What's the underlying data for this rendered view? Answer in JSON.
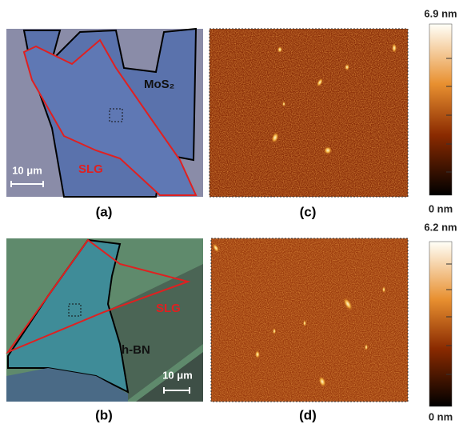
{
  "panel_a": {
    "label": "(a)",
    "flake": "MoS₂",
    "layer": "SLG",
    "scale_bar": "10 μm"
  },
  "panel_b": {
    "label": "(b)",
    "flake": "h-BN",
    "layer": "SLG",
    "scale_bar": "10 μm"
  },
  "panel_c": {
    "label": "(c)",
    "colorbar_max": "6.9 nm",
    "colorbar_min": "0 nm"
  },
  "panel_d": {
    "label": "(d)",
    "colorbar_max": "6.2 nm",
    "colorbar_min": "0 nm"
  }
}
